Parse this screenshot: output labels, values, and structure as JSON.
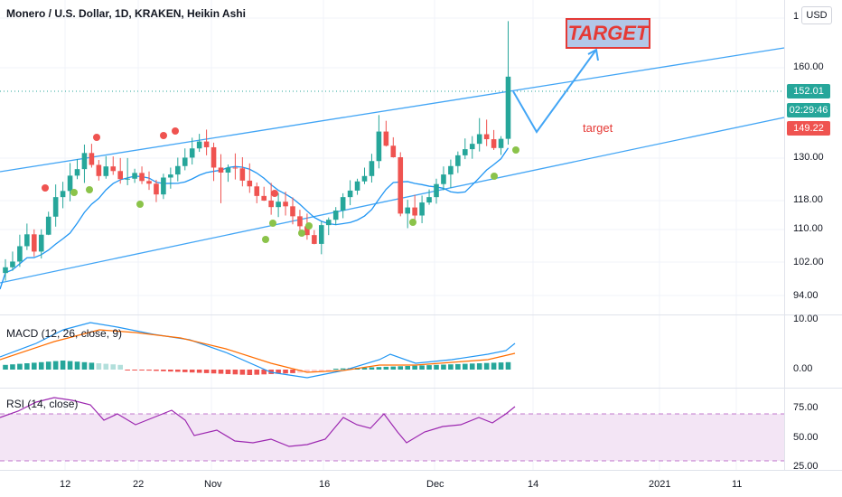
{
  "header": {
    "title": "Monero / U.S. Dollar, 1D, KRAKEN, Heikin Ashi",
    "currency": "USD"
  },
  "annotations": {
    "target_box": "TARGET",
    "target_label": "target"
  },
  "price_axis": {
    "ticks": [
      "160.00",
      "130.00",
      "118.00",
      "110.00",
      "102.00",
      "94.00"
    ],
    "badges": [
      {
        "label": "152.01",
        "color": "#26a69a"
      },
      {
        "label": "02:29:46",
        "color": "#26a69a"
      },
      {
        "label": "149.22",
        "color": "#ef5350"
      }
    ]
  },
  "macd": {
    "title": "MACD (12, 26, close, 9)",
    "ticks": [
      "10.00",
      "0.00"
    ]
  },
  "rsi": {
    "title": "RSI (14, close)",
    "ticks": [
      "75.00",
      "50.00",
      "25.00"
    ]
  },
  "time_axis": {
    "ticks": [
      "12",
      "22",
      "Nov",
      "16",
      "Dec",
      "14",
      "2021",
      "11"
    ]
  },
  "colors": {
    "up": "#26a69a",
    "down": "#ef5350",
    "channel": "#42a5f5",
    "ma": "#2196f3",
    "signal": "#ff6d00",
    "rsi_band": "#f3e5f5",
    "rsi_line": "#9c27b0"
  },
  "chart_data": {
    "type": "candlestick",
    "price_scale": {
      "ymin": 90,
      "ymax": 172
    },
    "candles": [
      {
        "o": 100.8,
        "h": 104.4,
        "l": 98.8,
        "c": 102.3
      },
      {
        "o": 102.3,
        "h": 106.4,
        "l": 101.4,
        "c": 103.8
      },
      {
        "o": 103.8,
        "h": 110.8,
        "l": 102.4,
        "c": 107.8
      },
      {
        "o": 107.8,
        "h": 113.7,
        "l": 106.8,
        "c": 110.9
      },
      {
        "o": 110.9,
        "h": 112.2,
        "l": 105.1,
        "c": 106.4
      },
      {
        "o": 106.4,
        "h": 112.2,
        "l": 104.6,
        "c": 110.8
      },
      {
        "o": 110.8,
        "h": 116.8,
        "l": 110.7,
        "c": 115.5
      },
      {
        "o": 115.5,
        "h": 123.9,
        "l": 112.9,
        "c": 120.6
      },
      {
        "o": 120.6,
        "h": 124.6,
        "l": 117.7,
        "c": 122.2
      },
      {
        "o": 122.2,
        "h": 129.5,
        "l": 119.5,
        "c": 126.2
      },
      {
        "o": 126.2,
        "h": 130.5,
        "l": 125.3,
        "c": 127.9
      },
      {
        "o": 127.9,
        "h": 134.3,
        "l": 124.3,
        "c": 132.1
      },
      {
        "o": 132.1,
        "h": 134.5,
        "l": 128.3,
        "c": 129.0
      },
      {
        "o": 129.0,
        "h": 130.3,
        "l": 124.9,
        "c": 126.1
      },
      {
        "o": 126.1,
        "h": 131.3,
        "l": 125.4,
        "c": 128.6
      },
      {
        "o": 128.6,
        "h": 131.2,
        "l": 126.4,
        "c": 127.4
      },
      {
        "o": 127.4,
        "h": 130.8,
        "l": 124.1,
        "c": 125.3
      },
      {
        "o": 125.3,
        "h": 130.8,
        "l": 123.7,
        "c": 125.4
      },
      {
        "o": 125.4,
        "h": 128.0,
        "l": 124.3,
        "c": 126.9
      },
      {
        "o": 126.9,
        "h": 128.6,
        "l": 124.0,
        "c": 124.8
      },
      {
        "o": 124.8,
        "h": 127.3,
        "l": 122.5,
        "c": 124.1
      },
      {
        "o": 124.1,
        "h": 125.1,
        "l": 119.3,
        "c": 121.3
      },
      {
        "o": 121.3,
        "h": 126.7,
        "l": 120.1,
        "c": 125.7
      },
      {
        "o": 125.7,
        "h": 128.3,
        "l": 122.8,
        "c": 126.5
      },
      {
        "o": 126.5,
        "h": 130.9,
        "l": 124.7,
        "c": 128.7
      },
      {
        "o": 128.7,
        "h": 133.3,
        "l": 127.6,
        "c": 130.9
      },
      {
        "o": 130.9,
        "h": 136.1,
        "l": 129.1,
        "c": 133.3
      },
      {
        "o": 133.3,
        "h": 137.1,
        "l": 132.4,
        "c": 135.1
      },
      {
        "o": 135.1,
        "h": 138.2,
        "l": 131.5,
        "c": 133.6
      },
      {
        "o": 133.6,
        "h": 134.8,
        "l": 124.8,
        "c": 128.3
      },
      {
        "o": 128.3,
        "h": 131.8,
        "l": 119.0,
        "c": 127.0
      },
      {
        "o": 127.0,
        "h": 129.1,
        "l": 124.6,
        "c": 128.3
      },
      {
        "o": 128.3,
        "h": 132.0,
        "l": 125.2,
        "c": 128.1
      },
      {
        "o": 128.1,
        "h": 131.0,
        "l": 123.4,
        "c": 124.9
      },
      {
        "o": 124.9,
        "h": 129.4,
        "l": 121.7,
        "c": 123.4
      },
      {
        "o": 123.4,
        "h": 124.4,
        "l": 119.0,
        "c": 120.9
      },
      {
        "o": 120.9,
        "h": 123.3,
        "l": 119.6,
        "c": 119.7
      },
      {
        "o": 119.7,
        "h": 124.3,
        "l": 116.0,
        "c": 118.0
      },
      {
        "o": 118.0,
        "h": 121.7,
        "l": 115.4,
        "c": 119.4
      },
      {
        "o": 119.4,
        "h": 122.0,
        "l": 115.8,
        "c": 118.2
      },
      {
        "o": 118.2,
        "h": 120.5,
        "l": 113.5,
        "c": 115.6
      },
      {
        "o": 115.6,
        "h": 117.3,
        "l": 111.7,
        "c": 113.0
      },
      {
        "o": 113.0,
        "h": 116.3,
        "l": 109.5,
        "c": 110.7
      },
      {
        "o": 110.7,
        "h": 112.0,
        "l": 108.3,
        "c": 108.4
      },
      {
        "o": 108.4,
        "h": 114.3,
        "l": 105.7,
        "c": 113.3
      },
      {
        "o": 113.3,
        "h": 115.3,
        "l": 110.7,
        "c": 114.7
      },
      {
        "o": 114.7,
        "h": 118.0,
        "l": 113.3,
        "c": 117.1
      },
      {
        "o": 117.1,
        "h": 121.6,
        "l": 115.1,
        "c": 120.6
      },
      {
        "o": 120.6,
        "h": 125.0,
        "l": 118.5,
        "c": 122.3
      },
      {
        "o": 122.3,
        "h": 125.4,
        "l": 121.2,
        "c": 124.7
      },
      {
        "o": 124.7,
        "h": 128.3,
        "l": 124.0,
        "c": 126.1
      },
      {
        "o": 126.1,
        "h": 131.9,
        "l": 124.4,
        "c": 130.0
      },
      {
        "o": 130.0,
        "h": 142.0,
        "l": 128.1,
        "c": 137.7
      },
      {
        "o": 137.7,
        "h": 140.5,
        "l": 133.8,
        "c": 134.0
      },
      {
        "o": 134.0,
        "h": 136.2,
        "l": 130.9,
        "c": 131.0
      },
      {
        "o": 131.0,
        "h": 132.3,
        "l": 115.6,
        "c": 116.3
      },
      {
        "o": 116.3,
        "h": 119.9,
        "l": 112.5,
        "c": 117.9
      },
      {
        "o": 117.9,
        "h": 121.2,
        "l": 114.4,
        "c": 115.8
      },
      {
        "o": 115.8,
        "h": 121.0,
        "l": 113.8,
        "c": 119.2
      },
      {
        "o": 119.2,
        "h": 122.6,
        "l": 118.6,
        "c": 120.6
      },
      {
        "o": 120.6,
        "h": 125.4,
        "l": 118.9,
        "c": 124.0
      },
      {
        "o": 124.0,
        "h": 128.6,
        "l": 122.4,
        "c": 126.5
      },
      {
        "o": 126.5,
        "h": 130.4,
        "l": 123.0,
        "c": 128.7
      },
      {
        "o": 128.7,
        "h": 132.5,
        "l": 126.9,
        "c": 131.5
      },
      {
        "o": 131.5,
        "h": 135.9,
        "l": 130.5,
        "c": 133.1
      },
      {
        "o": 133.1,
        "h": 136.5,
        "l": 130.6,
        "c": 134.5
      },
      {
        "o": 134.5,
        "h": 141.2,
        "l": 132.5,
        "c": 137.0
      },
      {
        "o": 137.0,
        "h": 140.8,
        "l": 133.9,
        "c": 135.7
      },
      {
        "o": 135.7,
        "h": 138.1,
        "l": 132.9,
        "c": 133.4
      },
      {
        "o": 133.4,
        "h": 136.5,
        "l": 131.6,
        "c": 135.8
      },
      {
        "o": 135.8,
        "h": 166.5,
        "l": 134.3,
        "c": 152.01
      }
    ]
  }
}
